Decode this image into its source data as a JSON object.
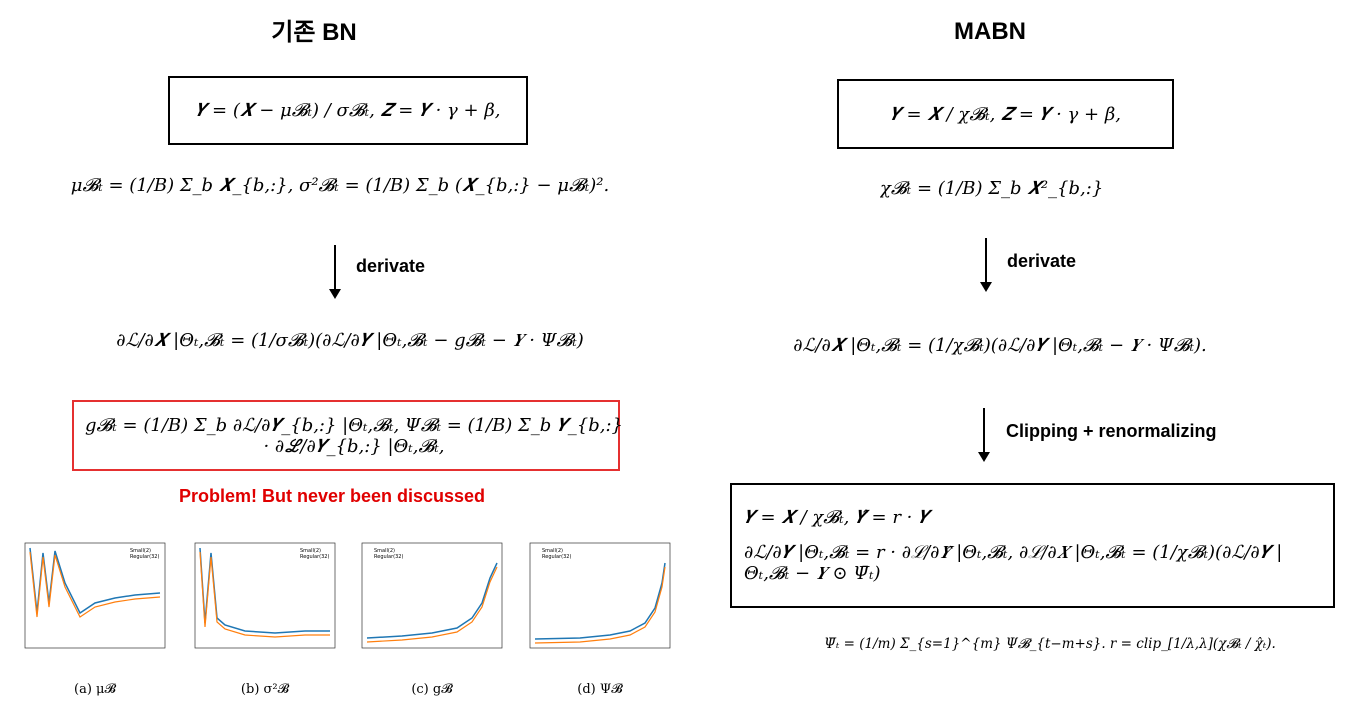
{
  "left": {
    "title": "기존 BN",
    "box_formula": "𝒀 = (𝑿 − μ𝓑ₜ) / σ𝓑ₜ,   𝒁 = 𝒀 · γ + β,",
    "stats_formula": "μ𝓑ₜ = (1/B) Σ_b 𝑿_{b,:},   σ²𝓑ₜ = (1/B) Σ_b (𝑿_{b,:} − μ𝓑ₜ)².",
    "arrow_label": "derivate",
    "grad_formula": "∂ℒ/∂𝑿 |Θₜ,𝓑ₜ = (1/σ𝓑ₜ)(∂ℒ/∂𝒀 |Θₜ,𝓑ₜ − g𝓑ₜ − 𝒀 · Ψ𝓑ₜ)",
    "red_box_formula": "g𝓑ₜ = (1/B) Σ_b ∂ℒ/∂𝒀_{b,:} |Θₜ,𝓑ₜ,   Ψ𝓑ₜ = (1/B) Σ_b 𝒀_{b,:} · ∂ℒ/∂𝒀_{b,:} |Θₜ,𝓑ₜ,",
    "problem": "Problem! But never been discussed",
    "legend": [
      "Small(2)",
      "Regular(32)"
    ],
    "captions": [
      "(a) μ𝓑",
      "(b) σ²𝓑",
      "(c) g𝓑",
      "(d) Ψ𝓑"
    ]
  },
  "right": {
    "title": "MABN",
    "box_formula": "𝒀 = 𝑿 / χ𝓑ₜ,   𝒁 = 𝒀 · γ + β,",
    "stats_formula": "χ𝓑ₜ = (1/B) Σ_b 𝑿²_{b,:}",
    "arrow_label": "derivate",
    "grad_formula": "∂ℒ/∂𝑿 |Θₜ,𝓑ₜ = (1/χ𝓑ₜ)(∂ℒ/∂𝒀 |Θₜ,𝓑ₜ − 𝒀 · Ψ𝓑ₜ).",
    "arrow_label_2": "Clipping + renormalizing",
    "box2_lines": [
      "𝒀 = 𝑿 / χ𝓑ₜ,   𝒀̂ = r · 𝒀",
      "∂ℒ/∂𝒀 |Θₜ,𝓑ₜ = r · ∂ℒ/∂𝒀̂ |Θₜ,𝓑ₜ,   ∂ℒ/∂𝑿 |Θₜ,𝓑ₜ = (1/χ𝓑ₜ)(∂ℒ/∂𝒀 |Θₜ,𝓑ₜ − 𝒀 ⊙ Ψ̄ₜ)"
    ],
    "bottom_formula": "Ψ̄ₜ = (1/m) Σ_{s=1}^{m} Ψ𝓑_{t−m+s}.    r = clip_[1/λ,λ](χ𝓑ₜ / χ̂ₜ)."
  }
}
